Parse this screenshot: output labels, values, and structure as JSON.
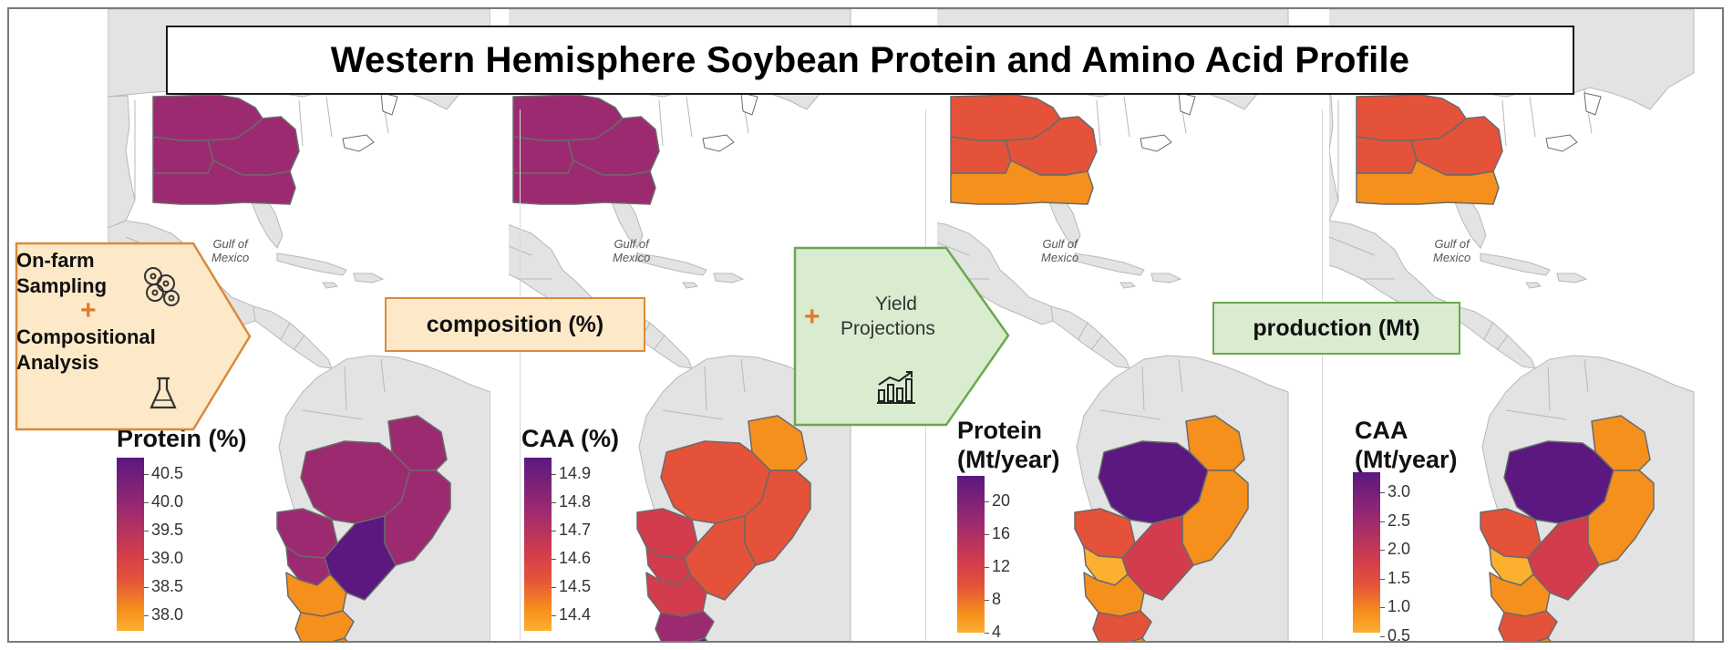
{
  "title": "Western Hemisphere Soybean Protein and Amino Acid Profile",
  "labels": {
    "composition": "composition (%)",
    "production": "production (Mt)",
    "gulf_line1": "Gulf of",
    "gulf_line2": "Mexico"
  },
  "step_left": {
    "line1": "On-farm",
    "line2": "Sampling",
    "plus": "+",
    "line3": "Compositional",
    "line4": "Analysis",
    "icons": [
      "soybeans-icon",
      "flask-icon"
    ]
  },
  "step_mid": {
    "plus": "+",
    "line1": "Yield",
    "line2": "Projections",
    "icons": [
      "bar-chart-icon"
    ]
  },
  "colors": {
    "purple": "#5a1880",
    "magenta": "#9c2a70",
    "red": "#d23c4c",
    "red_orange": "#e4523a",
    "orange": "#f6901c",
    "yellow_orange": "#fbb030",
    "yellow": "#fcd45a",
    "land": "#e3e3e3",
    "border": "#6a6a6a",
    "label_orange_fill": "#fde9c8",
    "label_green_fill": "#d9ecd0"
  },
  "maps": [
    {
      "legend_title_lines": [
        "Protein (%)"
      ],
      "ticks": [
        "40.5",
        "40.0",
        "39.5",
        "39.0",
        "38.5",
        "38.0"
      ],
      "regions": {
        "us_north": "magenta",
        "us_mid_w": "magenta",
        "us_mid_e": "magenta",
        "us_south": "magenta",
        "br_north": "magenta",
        "br_center": "magenta",
        "br_east": "magenta",
        "br_sw": "magenta",
        "py": "magenta",
        "br_south": "purple",
        "ar_north": "orange",
        "ar_mid": "orange",
        "ar_south": "orange"
      }
    },
    {
      "legend_title_lines": [
        "CAA (%)"
      ],
      "ticks": [
        "14.9",
        "14.8",
        "14.7",
        "14.6",
        "14.5",
        "14.4"
      ],
      "regions": {
        "us_north": "magenta",
        "us_mid_w": "magenta",
        "us_mid_e": "magenta",
        "us_south": "magenta",
        "br_north": "orange",
        "br_center": "red_orange",
        "br_east": "red_orange",
        "br_sw": "red",
        "py": "red",
        "br_south": "red_orange",
        "ar_north": "red",
        "ar_mid": "magenta",
        "ar_south": "purple"
      }
    },
    {
      "legend_title_lines": [
        "Protein",
        "(Mt/year)"
      ],
      "ticks": [
        "20",
        "16",
        "12",
        "8",
        "4"
      ],
      "regions": {
        "us_north": "red_orange",
        "us_mid_w": "red_orange",
        "us_mid_e": "red_orange",
        "us_south": "orange",
        "br_north": "orange",
        "br_center": "purple",
        "br_east": "orange",
        "br_sw": "red_orange",
        "py": "yellow_orange",
        "br_south": "red",
        "ar_north": "orange",
        "ar_mid": "red_orange",
        "ar_south": "orange"
      }
    },
    {
      "legend_title_lines": [
        "CAA",
        "(Mt/year)"
      ],
      "ticks": [
        "3.0",
        "2.5",
        "2.0",
        "1.5",
        "1.0",
        "0.5"
      ],
      "regions": {
        "us_north": "red_orange",
        "us_mid_w": "red_orange",
        "us_mid_e": "red_orange",
        "us_south": "orange",
        "br_north": "orange",
        "br_center": "purple",
        "br_east": "orange",
        "br_sw": "red_orange",
        "py": "yellow_orange",
        "br_south": "red",
        "ar_north": "orange",
        "ar_mid": "red_orange",
        "ar_south": "orange"
      }
    }
  ]
}
